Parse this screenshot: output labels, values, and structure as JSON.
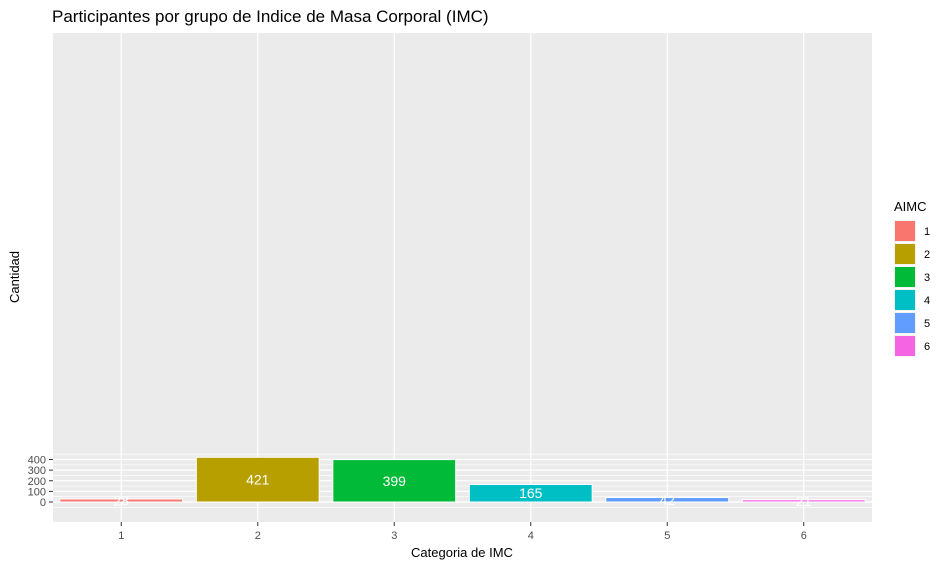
{
  "chart_data": {
    "type": "bar",
    "title": "Participantes por grupo de Indice de Masa Corporal (IMC)",
    "xlabel": "Categoria de IMC",
    "ylabel": "Cantidad",
    "categories": [
      "1",
      "2",
      "3",
      "4",
      "5",
      "6"
    ],
    "values": [
      28,
      421,
      399,
      165,
      42,
      21
    ],
    "data_labels": [
      "28",
      "421",
      "399",
      "165",
      "42",
      "21"
    ],
    "ylim": [
      0,
      441
    ],
    "yticks": [
      0,
      100,
      200,
      300,
      400
    ],
    "ytick_labels": [
      "0",
      "100",
      "200",
      "300",
      "400"
    ],
    "grid": true,
    "legend": {
      "title": "AIMC",
      "placement": "right",
      "entries": [
        "1",
        "2",
        "3",
        "4",
        "5",
        "6"
      ]
    },
    "colors": [
      "#F8766D",
      "#B79F00",
      "#00BA38",
      "#00BFC4",
      "#619CFF",
      "#F564E3"
    ],
    "panel_background": "#EBEBEB",
    "grid_color": "#FFFFFF"
  }
}
